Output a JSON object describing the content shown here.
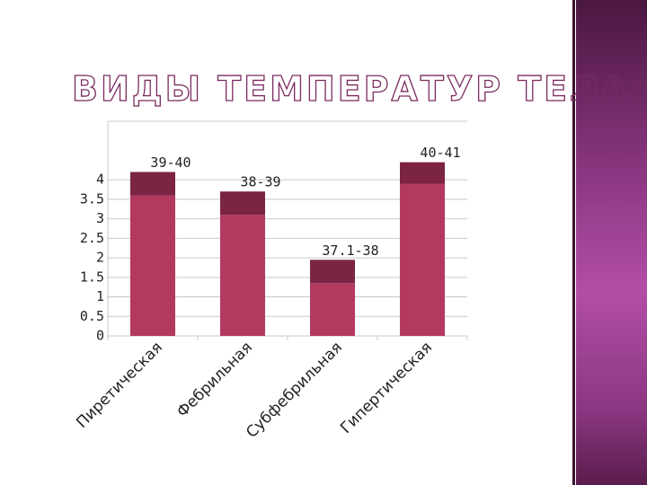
{
  "chart_data": {
    "type": "bar",
    "title": "ВИДЫ ТЕМПЕРАТУР ТЕЛА:",
    "categories": [
      "Пиретическая",
      "Фебрильная",
      "Субфебрильная",
      "Гипертическая"
    ],
    "series": [
      {
        "color": "#b3395f",
        "values": [
          3.6,
          3.1,
          1.35,
          3.9
        ]
      },
      {
        "color": "#7b2443",
        "values": [
          0.6,
          0.6,
          0.6,
          0.55
        ]
      }
    ],
    "labels": [
      "39-40",
      "38-39",
      "37.1-38",
      "40-41"
    ],
    "ylim": [
      0,
      5.5
    ],
    "yticks": [
      0,
      0.5,
      1,
      1.5,
      2,
      2.5,
      3,
      3.5,
      4
    ],
    "grid": true,
    "stacked": true
  }
}
